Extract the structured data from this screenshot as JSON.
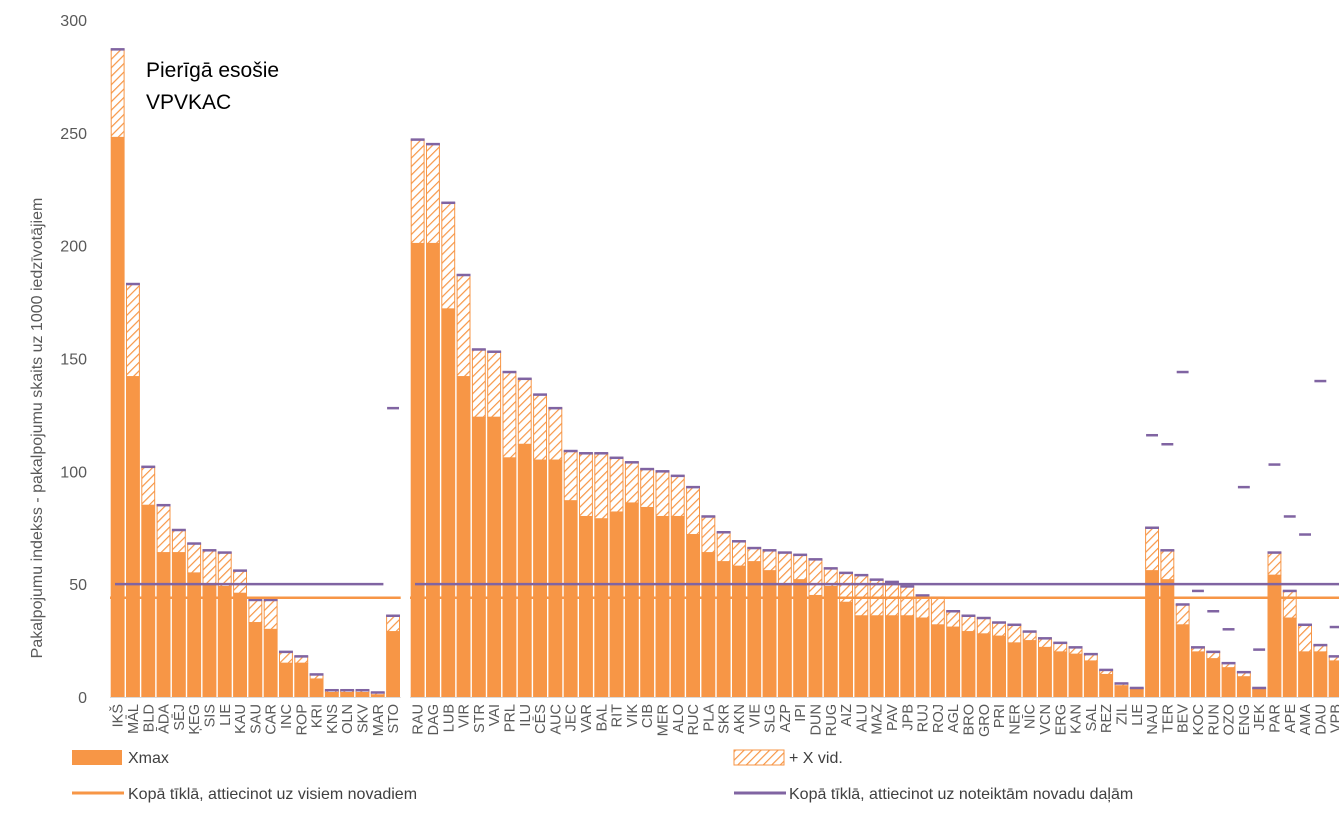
{
  "chart_data": {
    "type": "bar",
    "annotation": [
      "Pierīgā esošie",
      "VPVKAC"
    ],
    "ylabel": "Pakalpojumu indekss - pakalpojumu skaits uz 1000 iedzīvotājiem",
    "xlabel": "",
    "ylim": [
      0,
      300
    ],
    "yticks": [
      "0",
      "50",
      "100",
      "150",
      "200",
      "250",
      "300"
    ],
    "colors": {
      "xmax": "#F79646",
      "line_all": "#F79646",
      "line_partial": "#8064A2",
      "axis": "#D9D9D9",
      "text": "#595959"
    },
    "legend": {
      "position": "bottom",
      "xmax": "Xmax",
      "xvid": "+ X vid.",
      "line_all": "Kopā tīklā, attiecinot uz visiem novadiem",
      "line_partial": "Kopā tīklā, attiecinot uz noteiktām novadu daļām"
    },
    "reference_lines": {
      "all_municipalities": 44,
      "municipality_parts": 50
    },
    "groups": [
      {
        "categories": [
          "IKŠ",
          "MĀL",
          "BLD",
          "ĀDA",
          "SĒJ",
          "ĶEG",
          "SIS",
          "LIE",
          "KAU",
          "SAU",
          "CAR",
          "INC",
          "ROP",
          "KRI",
          "KNS",
          "OLN",
          "SKV",
          "MAR",
          "STO"
        ],
        "xmax": [
          248,
          142,
          85,
          64,
          64,
          55,
          50,
          49,
          46,
          33,
          30,
          15,
          15,
          8,
          2,
          2,
          2,
          1,
          29
        ],
        "total": [
          287,
          183,
          102,
          85,
          74,
          68,
          65,
          64,
          56,
          43,
          43,
          20,
          18,
          10,
          3,
          3,
          3,
          2,
          36
        ],
        "partial": [
          null,
          null,
          null,
          null,
          null,
          null,
          null,
          null,
          null,
          null,
          null,
          null,
          null,
          null,
          null,
          null,
          null,
          null,
          128
        ]
      },
      {
        "categories": [
          "RAU",
          "DAG",
          "LUB",
          "VIR",
          "STR",
          "VAI",
          "PRL",
          "ILU",
          "CĒS",
          "AUC",
          "JEC",
          "VAR",
          "BAL",
          "RIT",
          "VIK",
          "CIB",
          "MER",
          "ALO",
          "RUC",
          "PLA",
          "SKR",
          "AKN",
          "VIE",
          "SLG",
          "AZP",
          "IPI",
          "DUN",
          "RUG",
          "AIZ",
          "ALU",
          "MAZ",
          "PAV",
          "JPB",
          "RUJ",
          "ROJ",
          "AGL",
          "BRO",
          "GRO",
          "PRI",
          "NER",
          "NĪC",
          "VCN",
          "ERG",
          "KAN",
          "SAL",
          "REZ",
          "ZIL",
          "LIE",
          "NAU",
          "TER",
          "BEV",
          "KOC",
          "RUN",
          "OZO",
          "ENG",
          "JEK",
          "PAR",
          "APE",
          "AMA",
          "DAU",
          "VPB"
        ],
        "xmax": [
          201,
          201,
          172,
          142,
          124,
          124,
          106,
          112,
          105,
          105,
          87,
          80,
          79,
          82,
          86,
          84,
          80,
          80,
          72,
          64,
          60,
          58,
          60,
          56,
          50,
          52,
          45,
          49,
          42,
          36,
          36,
          36,
          36,
          35,
          32,
          31,
          29,
          28,
          27,
          24,
          25,
          22,
          20,
          19,
          16,
          10,
          5,
          4,
          56,
          52,
          32,
          20,
          17,
          13,
          9,
          4,
          54,
          35,
          20,
          20,
          16
        ],
        "total": [
          247,
          245,
          219,
          187,
          154,
          153,
          144,
          141,
          134,
          128,
          109,
          108,
          108,
          106,
          104,
          101,
          100,
          98,
          93,
          80,
          73,
          69,
          66,
          65,
          64,
          63,
          61,
          57,
          55,
          54,
          52,
          51,
          49,
          45,
          44,
          38,
          36,
          35,
          33,
          32,
          29,
          26,
          24,
          22,
          19,
          12,
          6,
          4,
          75,
          65,
          41,
          22,
          20,
          15,
          11,
          4,
          64,
          47,
          32,
          23,
          18
        ],
        "partial": [
          null,
          null,
          null,
          null,
          null,
          null,
          null,
          null,
          null,
          null,
          null,
          null,
          null,
          null,
          null,
          null,
          null,
          null,
          null,
          null,
          null,
          null,
          null,
          null,
          null,
          null,
          null,
          null,
          null,
          null,
          null,
          null,
          null,
          null,
          null,
          null,
          null,
          null,
          null,
          null,
          null,
          null,
          null,
          null,
          null,
          null,
          null,
          null,
          116,
          112,
          144,
          47,
          38,
          30,
          93,
          21,
          103,
          80,
          72,
          140,
          31
        ]
      }
    ]
  }
}
